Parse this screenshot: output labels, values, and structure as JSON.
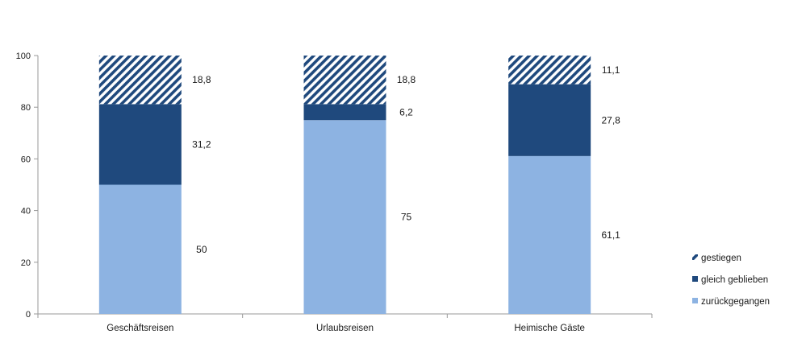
{
  "chart_data": {
    "type": "bar",
    "stacked": true,
    "title": "",
    "xlabel": "",
    "ylabel": "",
    "ylim": [
      0,
      100
    ],
    "yticks": [
      0,
      20,
      40,
      60,
      80,
      100
    ],
    "grid": false,
    "legend_position": "right-bottom",
    "categories": [
      "Geschäftsreisen",
      "Urlaubsreisen",
      "Heimische Gäste"
    ],
    "series": [
      {
        "name": "zurückgegangen",
        "values": [
          50,
          75,
          61.1
        ],
        "labels": [
          "50",
          "75",
          "61,1"
        ],
        "color": "#8db3e2",
        "pattern": "solid"
      },
      {
        "name": "gleich geblieben",
        "values": [
          31.2,
          6.2,
          27.8
        ],
        "labels": [
          "31,2",
          "6,2",
          "27,8"
        ],
        "color": "#1f497d",
        "pattern": "solid"
      },
      {
        "name": "gestiegen",
        "values": [
          18.8,
          18.8,
          11.1
        ],
        "labels": [
          "18,8",
          "18,8",
          "11,1"
        ],
        "color": "#1f497d",
        "pattern": "diagonal-hatch"
      }
    ],
    "legend_order": [
      "gestiegen",
      "gleich geblieben",
      "zurückgegangen"
    ]
  }
}
